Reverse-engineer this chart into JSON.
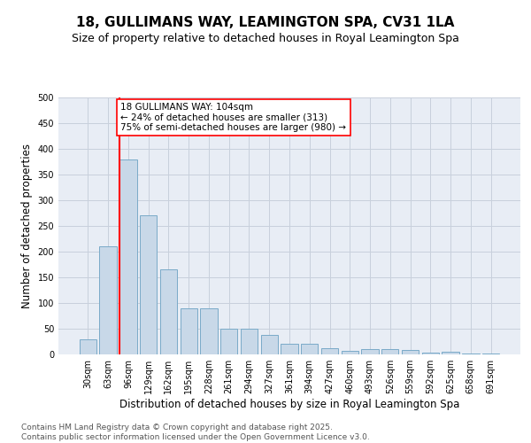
{
  "title": "18, GULLIMANS WAY, LEAMINGTON SPA, CV31 1LA",
  "subtitle": "Size of property relative to detached houses in Royal Leamington Spa",
  "xlabel": "Distribution of detached houses by size in Royal Leamington Spa",
  "ylabel": "Number of detached properties",
  "categories": [
    "30sqm",
    "63sqm",
    "96sqm",
    "129sqm",
    "162sqm",
    "195sqm",
    "228sqm",
    "261sqm",
    "294sqm",
    "327sqm",
    "361sqm",
    "394sqm",
    "427sqm",
    "460sqm",
    "493sqm",
    "526sqm",
    "559sqm",
    "592sqm",
    "625sqm",
    "658sqm",
    "691sqm"
  ],
  "values": [
    30,
    210,
    380,
    270,
    165,
    90,
    90,
    50,
    50,
    38,
    20,
    20,
    12,
    7,
    10,
    10,
    8,
    4,
    5,
    2,
    2
  ],
  "bar_color": "#c8d8e8",
  "bar_edge_color": "#7aaac8",
  "vline_index": 2,
  "vline_color": "red",
  "annotation_text": "18 GULLIMANS WAY: 104sqm\n← 24% of detached houses are smaller (313)\n75% of semi-detached houses are larger (980) →",
  "annotation_box_color": "white",
  "annotation_box_edge": "red",
  "ylim": [
    0,
    500
  ],
  "yticks": [
    0,
    50,
    100,
    150,
    200,
    250,
    300,
    350,
    400,
    450,
    500
  ],
  "grid_color": "#c8d0dc",
  "background_color": "#e8edf5",
  "footer": "Contains HM Land Registry data © Crown copyright and database right 2025.\nContains public sector information licensed under the Open Government Licence v3.0.",
  "title_fontsize": 11,
  "subtitle_fontsize": 9,
  "xlabel_fontsize": 8.5,
  "ylabel_fontsize": 8.5,
  "tick_fontsize": 7,
  "footer_fontsize": 6.5,
  "annotation_fontsize": 7.5
}
